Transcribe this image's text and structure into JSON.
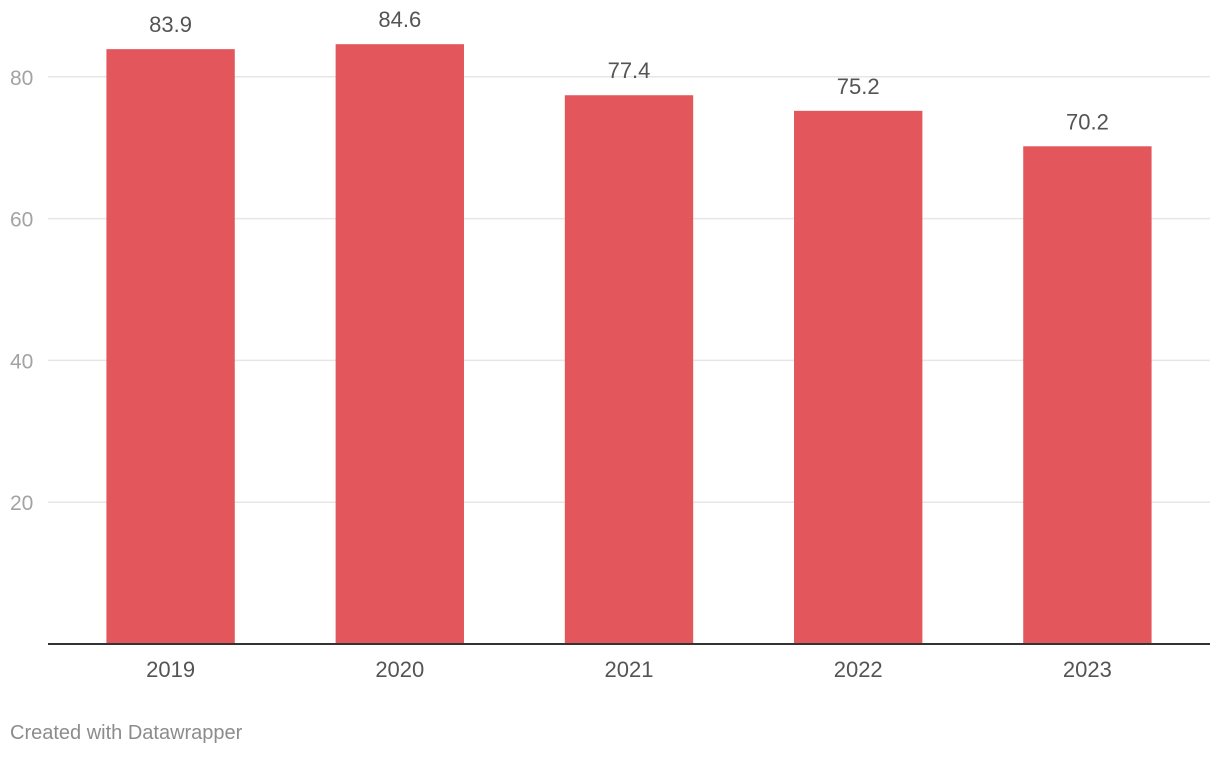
{
  "chart_data": {
    "type": "bar",
    "categories": [
      "2019",
      "2020",
      "2021",
      "2022",
      "2023"
    ],
    "values": [
      83.9,
      84.6,
      77.4,
      75.2,
      70.2
    ],
    "value_labels": [
      "83.9",
      "84.6",
      "77.4",
      "75.2",
      "70.2"
    ],
    "y_ticks": [
      20,
      40,
      60,
      80
    ],
    "ylim": [
      0,
      90
    ],
    "grid": true,
    "bar_color": "#e2565c",
    "title": "",
    "xlabel": "",
    "ylabel": ""
  },
  "footer": {
    "credit": "Created with Datawrapper"
  }
}
